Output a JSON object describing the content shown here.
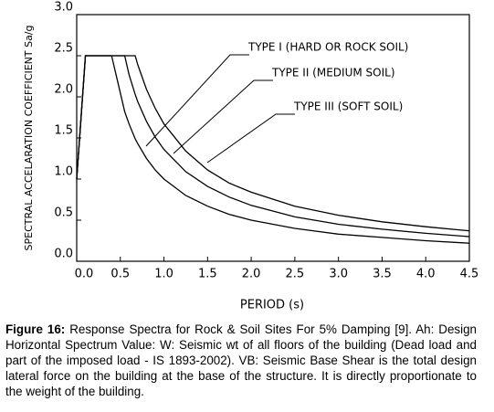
{
  "chart_data": {
    "type": "line",
    "y_label": "SPECTRAL ACCELARATION COEFFICIENT Sa/g",
    "x_label": "PERIOD (s)",
    "x": [
      0,
      0.1,
      0.4,
      0.55,
      0.6,
      0.67,
      0.7,
      0.8,
      0.9,
      1.0,
      1.25,
      1.5,
      1.75,
      2.0,
      2.5,
      3.0,
      3.5,
      4.0,
      4.5
    ],
    "series": [
      {
        "name": "TYPE I (HARD OR ROCK SOIL)",
        "color": "#000000",
        "values": [
          1.0,
          2.5,
          2.5,
          1.82,
          1.67,
          1.49,
          1.43,
          1.25,
          1.11,
          1.0,
          0.8,
          0.67,
          0.57,
          0.5,
          0.4,
          0.33,
          0.29,
          0.25,
          0.22
        ]
      },
      {
        "name": "TYPE II (MEDIUM SOIL)",
        "color": "#000000",
        "values": [
          1.0,
          2.5,
          2.5,
          2.5,
          2.27,
          2.03,
          1.94,
          1.7,
          1.51,
          1.36,
          1.09,
          0.91,
          0.78,
          0.68,
          0.54,
          0.45,
          0.39,
          0.34,
          0.3
        ]
      },
      {
        "name": "TYPE III (SOFT SOIL)",
        "color": "#000000",
        "values": [
          1.0,
          2.5,
          2.5,
          2.5,
          2.5,
          2.5,
          2.39,
          2.09,
          1.86,
          1.67,
          1.34,
          1.11,
          0.95,
          0.84,
          0.67,
          0.56,
          0.48,
          0.42,
          0.37
        ]
      }
    ],
    "xlim": [
      0,
      4.5
    ],
    "xticks": [
      {
        "value": 0,
        "label": "0.0"
      },
      0.5,
      {
        "value": 1,
        "label": "1.0"
      },
      1.5,
      {
        "value": 2,
        "label": "2.0"
      },
      2.5,
      {
        "value": 3,
        "label": "3.0"
      },
      3.5,
      {
        "value": 4,
        "label": "4.0"
      },
      4.5
    ],
    "ylim": [
      0,
      3
    ],
    "yticks": [
      {
        "value": 0,
        "label": "0.0"
      },
      0.5,
      {
        "value": 1,
        "label": "1.0"
      },
      1.5,
      {
        "value": 2,
        "label": "2.0"
      },
      2.5,
      {
        "value": 3,
        "label": "3.0"
      }
    ],
    "grid": false
  },
  "caption": {
    "label": "Figure 16:",
    "text": "Response Spectra for Rock & Soil Sites For 5% Damping [9]. Ah: Design Horizontal Spectrum Value: W: Seismic wt of all floors of the building (Dead load and part of the imposed load - IS 1893-2002). VB: Seismic Base Shear is the total design lateral force on the building at the base of the structure. It is directly proportionate to the weight of the building."
  }
}
